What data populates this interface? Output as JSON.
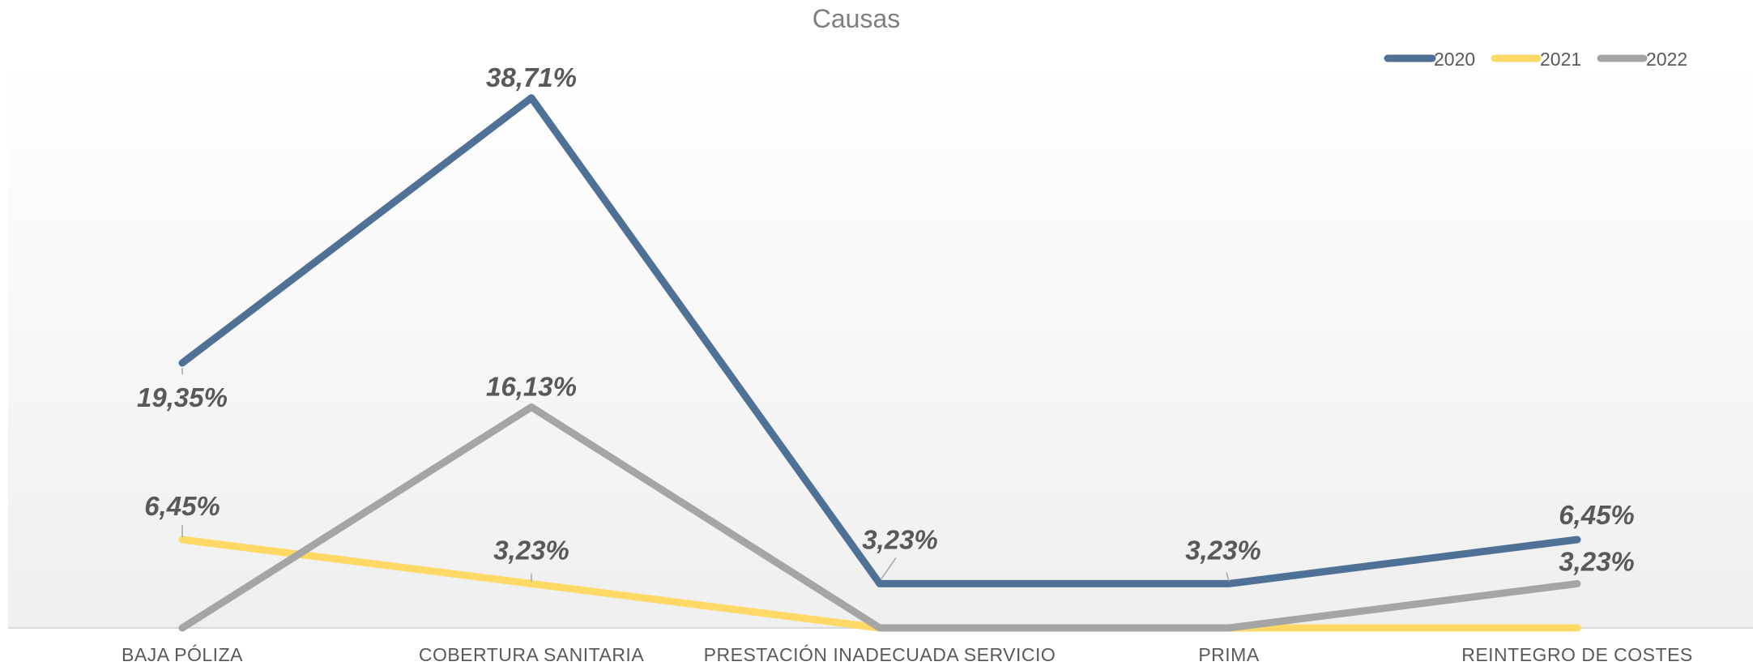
{
  "chart_data": {
    "type": "line",
    "title": "Causas",
    "categories": [
      "BAJA PÓLIZA",
      "COBERTURA SANITARIA",
      "PRESTACIÓN INADECUADA SERVICIO",
      "PRIMA",
      "REINTEGRO DE COSTES"
    ],
    "series": [
      {
        "name": "2020",
        "color": "#4f7196",
        "values": [
          19.35,
          38.71,
          3.23,
          3.23,
          6.45
        ]
      },
      {
        "name": "2021",
        "color": "#ffd966",
        "values": [
          6.45,
          3.23,
          0,
          0,
          0
        ]
      },
      {
        "name": "2022",
        "color": "#a5a5a5",
        "values": [
          0,
          16.13,
          0,
          0,
          3.23
        ]
      }
    ],
    "data_labels": [
      {
        "series": "2020",
        "category": "BAJA PÓLIZA",
        "text": "19,35%"
      },
      {
        "series": "2020",
        "category": "COBERTURA SANITARIA",
        "text": "38,71%"
      },
      {
        "series": "2020",
        "category": "PRESTACIÓN INADECUADA SERVICIO",
        "text": "3,23%"
      },
      {
        "series": "2020",
        "category": "PRIMA",
        "text": "3,23%"
      },
      {
        "series": "2020",
        "category": "REINTEGRO DE COSTES",
        "text": "6,45%"
      },
      {
        "series": "2021",
        "category": "BAJA PÓLIZA",
        "text": "6,45%"
      },
      {
        "series": "2021",
        "category": "COBERTURA SANITARIA",
        "text": "3,23%"
      },
      {
        "series": "2022",
        "category": "COBERTURA SANITARIA",
        "text": "16,13%"
      },
      {
        "series": "2022",
        "category": "REINTEGRO DE COSTES",
        "text": "3,23%"
      }
    ],
    "ylim": [
      0,
      40
    ],
    "grid": false,
    "legend_position": "top-right"
  }
}
